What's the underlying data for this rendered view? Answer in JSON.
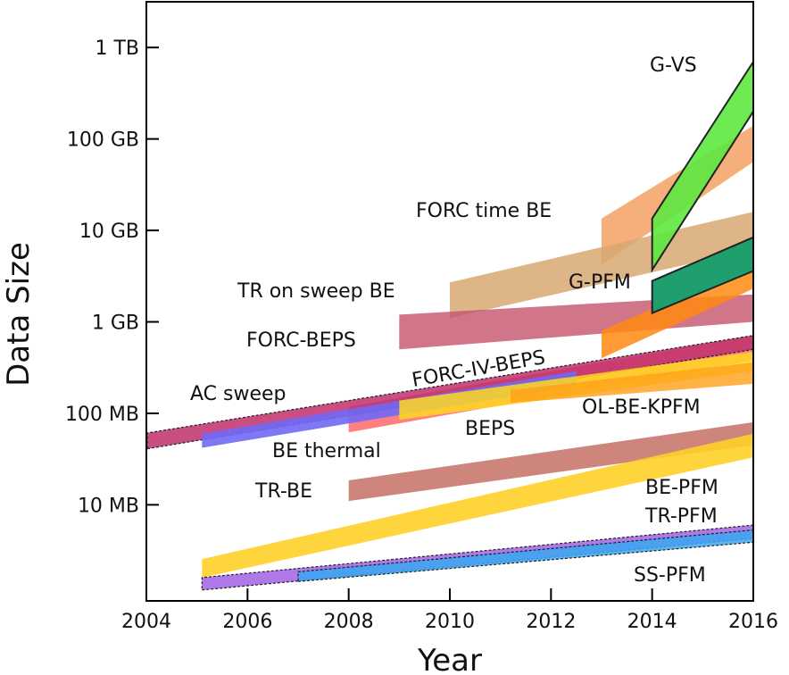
{
  "chart_data": {
    "type": "area",
    "title": "",
    "xlabel": "Year",
    "ylabel": "Data Size",
    "x_scale": "linear",
    "y_scale": "log",
    "xlim": [
      2004,
      2016
    ],
    "ylim_bytes": [
      890000.0,
      3160000000000.0
    ],
    "grid": false,
    "x_ticks": [
      {
        "value": 2004,
        "label": "2004"
      },
      {
        "value": 2006,
        "label": "2006"
      },
      {
        "value": 2008,
        "label": "2008"
      },
      {
        "value": 2010,
        "label": "2010"
      },
      {
        "value": 2012,
        "label": "2012"
      },
      {
        "value": 2014,
        "label": "2014"
      },
      {
        "value": 2016,
        "label": "2016"
      }
    ],
    "y_ticks": [
      {
        "value": 10000000.0,
        "label": "10 MB"
      },
      {
        "value": 100000000.0,
        "label": "100 MB"
      },
      {
        "value": 1000000000.0,
        "label": "1 GB"
      },
      {
        "value": 10000000000.0,
        "label": "10 GB"
      },
      {
        "value": 100000000000.0,
        "label": "100 GB"
      },
      {
        "value": 1000000000000.0,
        "label": "1 TB"
      }
    ],
    "series": [
      {
        "name": "FORC time BE",
        "color": "#f5a064",
        "opacity": 0.85,
        "outline": false,
        "x_start": 2013,
        "x_end": 2016,
        "start_bytes": [
          4200000000.0,
          13500000000.0
        ],
        "end_bytes": [
          56000000000.0,
          140000000000.0
        ]
      },
      {
        "name": "TR on sweep BE",
        "color": "#d8a872",
        "opacity": 0.85,
        "outline": false,
        "x_start": 2010,
        "x_end": 2016,
        "start_bytes": [
          1100000000.0,
          2700000000.0
        ],
        "end_bytes": [
          6200000000.0,
          16000000000.0
        ]
      },
      {
        "name": "FORC-BEPS",
        "color": "#c6546c",
        "opacity": 0.8,
        "outline": false,
        "x_start": 2009,
        "x_end": 2016,
        "start_bytes": [
          500000000.0,
          1200000000.0
        ],
        "end_bytes": [
          1000000000.0,
          2000000000.0
        ]
      },
      {
        "name": "BE thermal",
        "color": "#ff6a6a",
        "opacity": 0.85,
        "outline": false,
        "x_start": 2008,
        "x_end": 2016,
        "start_bytes": [
          62000000.0,
          118000000.0
        ],
        "end_bytes": [
          380000000.0,
          710000000.0
        ]
      },
      {
        "name": "FORC-IV-BEPS",
        "color": "#c0306c",
        "opacity": 0.85,
        "outline": true,
        "x_start": 2004.02,
        "x_end": 2016,
        "start_bytes": [
          41000000.0,
          61000000.0
        ],
        "end_bytes": [
          500000000.0,
          710000000.0
        ]
      },
      {
        "name": "AC sweep",
        "color": "#7068f5",
        "opacity": 0.9,
        "outline": false,
        "x_start": 2005.1,
        "x_end": 2012.5,
        "start_bytes": [
          42000000.0,
          60000000.0
        ],
        "end_bytes": [
          200000000.0,
          290000000.0
        ]
      },
      {
        "name": "BEPS",
        "color": "#ffd820",
        "opacity": 0.85,
        "outline": false,
        "x_start": 2009,
        "x_end": 2016,
        "start_bytes": [
          85000000.0,
          138000000.0
        ],
        "end_bytes": [
          290000000.0,
          470000000.0
        ]
      },
      {
        "name": "OL-BE-KPFM",
        "color": "#ffa018",
        "opacity": 0.8,
        "outline": false,
        "x_start": 2011.2,
        "x_end": 2016,
        "start_bytes": [
          130000000.0,
          180000000.0
        ],
        "end_bytes": [
          210000000.0,
          360000000.0
        ]
      },
      {
        "name": "",
        "color": "#ff8a10",
        "opacity": 0.85,
        "outline": false,
        "x_start": 2013,
        "x_end": 2016,
        "start_bytes": [
          400000000.0,
          800000000.0
        ],
        "end_bytes": [
          2300000000.0,
          4200000000.0
        ]
      },
      {
        "name": "G-PFM",
        "color": "#1f9e6e",
        "opacity": 1.0,
        "outline": true,
        "x_start": 2014,
        "x_end": 2016,
        "start_bytes": [
          1250000000.0,
          2800000000.0
        ],
        "end_bytes": [
          3600000000.0,
          8400000000.0
        ]
      },
      {
        "name": "G-VS",
        "color": "#5ee840",
        "opacity": 0.9,
        "outline": true,
        "x_start": 2014,
        "x_end": 2016,
        "start_bytes": [
          3700000000.0,
          13500000000.0
        ],
        "end_bytes": [
          200000000000.0,
          700000000000.0
        ]
      },
      {
        "name": "TR-BE",
        "color": "#c8786e",
        "opacity": 0.9,
        "outline": false,
        "x_start": 2008,
        "x_end": 2016,
        "start_bytes": [
          11000000.0,
          18500000.0
        ],
        "end_bytes": [
          45000000.0,
          80000000.0
        ]
      },
      {
        "name": "BE-PFM",
        "color": "#ffd028",
        "opacity": 0.9,
        "outline": false,
        "x_start": 2005.1,
        "x_end": 2016,
        "start_bytes": [
          1600000.0,
          2550000.0
        ],
        "end_bytes": [
          33000000.0,
          60000000.0
        ]
      },
      {
        "name": "TR-PFM",
        "color": "#a66ae8",
        "opacity": 0.9,
        "outline": true,
        "x_start": 2005.1,
        "x_end": 2016,
        "start_bytes": [
          1170000.0,
          1600000.0
        ],
        "end_bytes": [
          4300000.0,
          6000000.0
        ]
      },
      {
        "name": "SS-PFM",
        "color": "#3aa8f0",
        "opacity": 0.85,
        "outline": true,
        "x_start": 2007,
        "x_end": 2016,
        "start_bytes": [
          1450000.0,
          1850000.0
        ],
        "end_bytes": [
          3900000.0,
          5300000.0
        ]
      }
    ],
    "annotations": [
      {
        "text": "G-VS"
      },
      {
        "text": "FORC time BE"
      },
      {
        "text": "G-PFM"
      },
      {
        "text": "TR on sweep BE"
      },
      {
        "text": "FORC-BEPS"
      },
      {
        "text": "FORC-IV-BEPS"
      },
      {
        "text": "AC sweep"
      },
      {
        "text": "OL-BE-KPFM"
      },
      {
        "text": "BEPS"
      },
      {
        "text": "BE thermal"
      },
      {
        "text": "TR-BE"
      },
      {
        "text": "BE-PFM"
      },
      {
        "text": "TR-PFM"
      },
      {
        "text": "SS-PFM"
      }
    ]
  }
}
